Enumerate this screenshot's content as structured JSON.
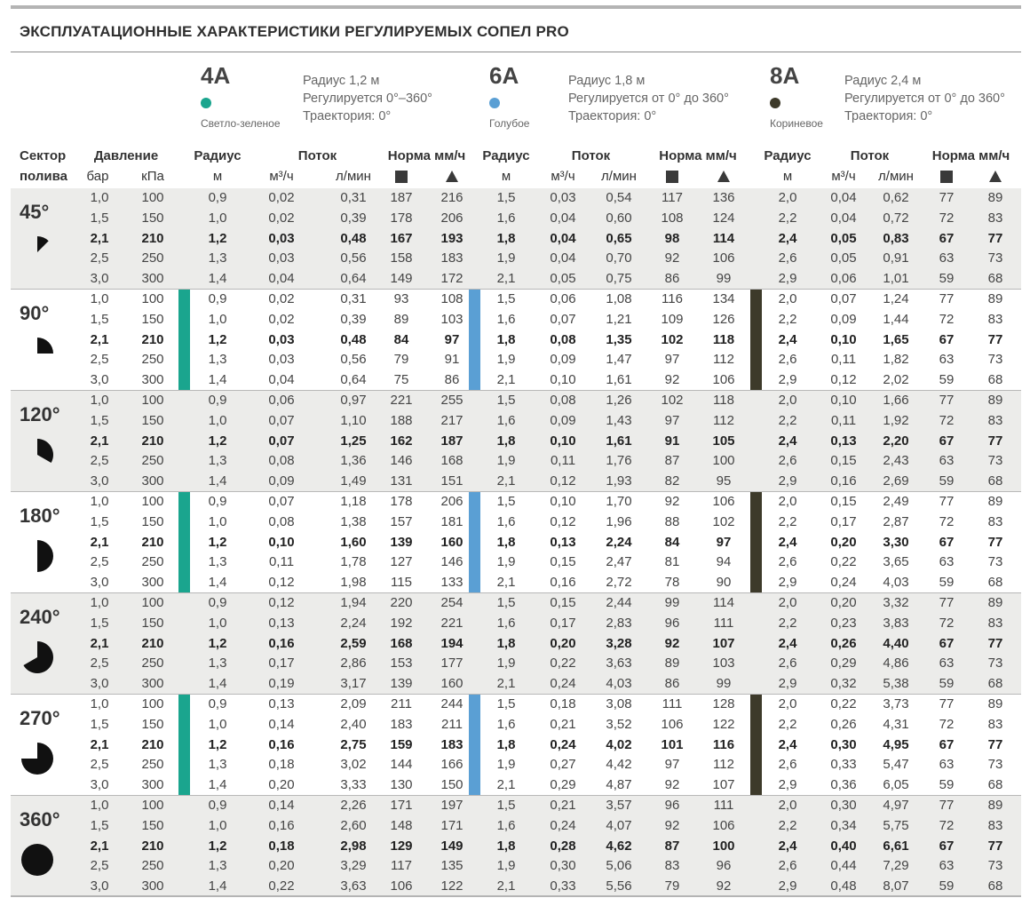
{
  "title": "ЭКСПЛУАТАЦИОННЫЕ ХАРАКТЕРИСТИКИ РЕГУЛИРУЕМЫХ СОПЕЛ PRO",
  "nozzles": [
    {
      "code": "4A",
      "color_name": "Светло-зеленое",
      "color": "#1aa58e",
      "info": [
        "Радиус 1,2 м",
        "Регулируется 0°–360°",
        "Траектория: 0°"
      ]
    },
    {
      "code": "6A",
      "color_name": "Голубое",
      "color": "#5a9fd4",
      "info": [
        "Радиус 1,8 м",
        "Регулируется от 0° до 360°",
        "Траектория: 0°"
      ]
    },
    {
      "code": "8A",
      "color_name": "Кориневое",
      "color": "#3d3a2a",
      "info": [
        "Радиус 2,4 м",
        "Регулируется от 0° до 360°",
        "Траектория: 0°"
      ]
    }
  ],
  "headers": {
    "sector": [
      "Сектор",
      "полива"
    ],
    "pressure": "Давление",
    "bar": "бар",
    "kpa": "кПа",
    "radius": "Радиус",
    "m": "м",
    "flow": "Поток",
    "m3h": "м³/ч",
    "lmin": "л/мин",
    "rate": "Норма мм/ч",
    "square_icon": "square-spacing-icon",
    "triangle_icon": "triangle-spacing-icon"
  },
  "groups": [
    {
      "sector": "45°",
      "angle": 45,
      "rows": [
        [
          "1,0",
          "100",
          "0,9",
          "0,02",
          "0,31",
          "187",
          "216",
          "1,5",
          "0,03",
          "0,54",
          "117",
          "136",
          "2,0",
          "0,04",
          "0,62",
          "77",
          "89"
        ],
        [
          "1,5",
          "150",
          "1,0",
          "0,02",
          "0,39",
          "178",
          "206",
          "1,6",
          "0,04",
          "0,60",
          "108",
          "124",
          "2,2",
          "0,04",
          "0,72",
          "72",
          "83"
        ],
        [
          "2,1",
          "210",
          "1,2",
          "0,03",
          "0,48",
          "167",
          "193",
          "1,8",
          "0,04",
          "0,65",
          "98",
          "114",
          "2,4",
          "0,05",
          "0,83",
          "67",
          "77"
        ],
        [
          "2,5",
          "250",
          "1,3",
          "0,03",
          "0,56",
          "158",
          "183",
          "1,9",
          "0,04",
          "0,70",
          "92",
          "106",
          "2,6",
          "0,05",
          "0,91",
          "63",
          "73"
        ],
        [
          "3,0",
          "300",
          "1,4",
          "0,04",
          "0,64",
          "149",
          "172",
          "2,1",
          "0,05",
          "0,75",
          "86",
          "99",
          "2,9",
          "0,06",
          "1,01",
          "59",
          "68"
        ]
      ]
    },
    {
      "sector": "90°",
      "angle": 90,
      "rows": [
        [
          "1,0",
          "100",
          "0,9",
          "0,02",
          "0,31",
          "93",
          "108",
          "1,5",
          "0,06",
          "1,08",
          "116",
          "134",
          "2,0",
          "0,07",
          "1,24",
          "77",
          "89"
        ],
        [
          "1,5",
          "150",
          "1,0",
          "0,02",
          "0,39",
          "89",
          "103",
          "1,6",
          "0,07",
          "1,21",
          "109",
          "126",
          "2,2",
          "0,09",
          "1,44",
          "72",
          "83"
        ],
        [
          "2,1",
          "210",
          "1,2",
          "0,03",
          "0,48",
          "84",
          "97",
          "1,8",
          "0,08",
          "1,35",
          "102",
          "118",
          "2,4",
          "0,10",
          "1,65",
          "67",
          "77"
        ],
        [
          "2,5",
          "250",
          "1,3",
          "0,03",
          "0,56",
          "79",
          "91",
          "1,9",
          "0,09",
          "1,47",
          "97",
          "112",
          "2,6",
          "0,11",
          "1,82",
          "63",
          "73"
        ],
        [
          "3,0",
          "300",
          "1,4",
          "0,04",
          "0,64",
          "75",
          "86",
          "2,1",
          "0,10",
          "1,61",
          "92",
          "106",
          "2,9",
          "0,12",
          "2,02",
          "59",
          "68"
        ]
      ]
    },
    {
      "sector": "120°",
      "angle": 120,
      "rows": [
        [
          "1,0",
          "100",
          "0,9",
          "0,06",
          "0,97",
          "221",
          "255",
          "1,5",
          "0,08",
          "1,26",
          "102",
          "118",
          "2,0",
          "0,10",
          "1,66",
          "77",
          "89"
        ],
        [
          "1,5",
          "150",
          "1,0",
          "0,07",
          "1,10",
          "188",
          "217",
          "1,6",
          "0,09",
          "1,43",
          "97",
          "112",
          "2,2",
          "0,11",
          "1,92",
          "72",
          "83"
        ],
        [
          "2,1",
          "210",
          "1,2",
          "0,07",
          "1,25",
          "162",
          "187",
          "1,8",
          "0,10",
          "1,61",
          "91",
          "105",
          "2,4",
          "0,13",
          "2,20",
          "67",
          "77"
        ],
        [
          "2,5",
          "250",
          "1,3",
          "0,08",
          "1,36",
          "146",
          "168",
          "1,9",
          "0,11",
          "1,76",
          "87",
          "100",
          "2,6",
          "0,15",
          "2,43",
          "63",
          "73"
        ],
        [
          "3,0",
          "300",
          "1,4",
          "0,09",
          "1,49",
          "131",
          "151",
          "2,1",
          "0,12",
          "1,93",
          "82",
          "95",
          "2,9",
          "0,16",
          "2,69",
          "59",
          "68"
        ]
      ]
    },
    {
      "sector": "180°",
      "angle": 180,
      "rows": [
        [
          "1,0",
          "100",
          "0,9",
          "0,07",
          "1,18",
          "178",
          "206",
          "1,5",
          "0,10",
          "1,70",
          "92",
          "106",
          "2,0",
          "0,15",
          "2,49",
          "77",
          "89"
        ],
        [
          "1,5",
          "150",
          "1,0",
          "0,08",
          "1,38",
          "157",
          "181",
          "1,6",
          "0,12",
          "1,96",
          "88",
          "102",
          "2,2",
          "0,17",
          "2,87",
          "72",
          "83"
        ],
        [
          "2,1",
          "210",
          "1,2",
          "0,10",
          "1,60",
          "139",
          "160",
          "1,8",
          "0,13",
          "2,24",
          "84",
          "97",
          "2,4",
          "0,20",
          "3,30",
          "67",
          "77"
        ],
        [
          "2,5",
          "250",
          "1,3",
          "0,11",
          "1,78",
          "127",
          "146",
          "1,9",
          "0,15",
          "2,47",
          "81",
          "94",
          "2,6",
          "0,22",
          "3,65",
          "63",
          "73"
        ],
        [
          "3,0",
          "300",
          "1,4",
          "0,12",
          "1,98",
          "115",
          "133",
          "2,1",
          "0,16",
          "2,72",
          "78",
          "90",
          "2,9",
          "0,24",
          "4,03",
          "59",
          "68"
        ]
      ]
    },
    {
      "sector": "240°",
      "angle": 240,
      "rows": [
        [
          "1,0",
          "100",
          "0,9",
          "0,12",
          "1,94",
          "220",
          "254",
          "1,5",
          "0,15",
          "2,44",
          "99",
          "114",
          "2,0",
          "0,20",
          "3,32",
          "77",
          "89"
        ],
        [
          "1,5",
          "150",
          "1,0",
          "0,13",
          "2,24",
          "192",
          "221",
          "1,6",
          "0,17",
          "2,83",
          "96",
          "111",
          "2,2",
          "0,23",
          "3,83",
          "72",
          "83"
        ],
        [
          "2,1",
          "210",
          "1,2",
          "0,16",
          "2,59",
          "168",
          "194",
          "1,8",
          "0,20",
          "3,28",
          "92",
          "107",
          "2,4",
          "0,26",
          "4,40",
          "67",
          "77"
        ],
        [
          "2,5",
          "250",
          "1,3",
          "0,17",
          "2,86",
          "153",
          "177",
          "1,9",
          "0,22",
          "3,63",
          "89",
          "103",
          "2,6",
          "0,29",
          "4,86",
          "63",
          "73"
        ],
        [
          "3,0",
          "300",
          "1,4",
          "0,19",
          "3,17",
          "139",
          "160",
          "2,1",
          "0,24",
          "4,03",
          "86",
          "99",
          "2,9",
          "0,32",
          "5,38",
          "59",
          "68"
        ]
      ]
    },
    {
      "sector": "270°",
      "angle": 270,
      "rows": [
        [
          "1,0",
          "100",
          "0,9",
          "0,13",
          "2,09",
          "211",
          "244",
          "1,5",
          "0,18",
          "3,08",
          "111",
          "128",
          "2,0",
          "0,22",
          "3,73",
          "77",
          "89"
        ],
        [
          "1,5",
          "150",
          "1,0",
          "0,14",
          "2,40",
          "183",
          "211",
          "1,6",
          "0,21",
          "3,52",
          "106",
          "122",
          "2,2",
          "0,26",
          "4,31",
          "72",
          "83"
        ],
        [
          "2,1",
          "210",
          "1,2",
          "0,16",
          "2,75",
          "159",
          "183",
          "1,8",
          "0,24",
          "4,02",
          "101",
          "116",
          "2,4",
          "0,30",
          "4,95",
          "67",
          "77"
        ],
        [
          "2,5",
          "250",
          "1,3",
          "0,18",
          "3,02",
          "144",
          "166",
          "1,9",
          "0,27",
          "4,42",
          "97",
          "112",
          "2,6",
          "0,33",
          "5,47",
          "63",
          "73"
        ],
        [
          "3,0",
          "300",
          "1,4",
          "0,20",
          "3,33",
          "130",
          "150",
          "2,1",
          "0,29",
          "4,87",
          "92",
          "107",
          "2,9",
          "0,36",
          "6,05",
          "59",
          "68"
        ]
      ]
    },
    {
      "sector": "360°",
      "angle": 360,
      "rows": [
        [
          "1,0",
          "100",
          "0,9",
          "0,14",
          "2,26",
          "171",
          "197",
          "1,5",
          "0,21",
          "3,57",
          "96",
          "111",
          "2,0",
          "0,30",
          "4,97",
          "77",
          "89"
        ],
        [
          "1,5",
          "150",
          "1,0",
          "0,16",
          "2,60",
          "148",
          "171",
          "1,6",
          "0,24",
          "4,07",
          "92",
          "106",
          "2,2",
          "0,34",
          "5,75",
          "72",
          "83"
        ],
        [
          "2,1",
          "210",
          "1,2",
          "0,18",
          "2,98",
          "129",
          "149",
          "1,8",
          "0,28",
          "4,62",
          "87",
          "100",
          "2,4",
          "0,40",
          "6,61",
          "67",
          "77"
        ],
        [
          "2,5",
          "250",
          "1,3",
          "0,20",
          "3,29",
          "117",
          "135",
          "1,9",
          "0,30",
          "5,06",
          "83",
          "96",
          "2,6",
          "0,44",
          "7,29",
          "63",
          "73"
        ],
        [
          "3,0",
          "300",
          "1,4",
          "0,22",
          "3,63",
          "106",
          "122",
          "2,1",
          "0,33",
          "5,56",
          "79",
          "92",
          "2,9",
          "0,48",
          "8,07",
          "59",
          "68"
        ]
      ]
    }
  ]
}
